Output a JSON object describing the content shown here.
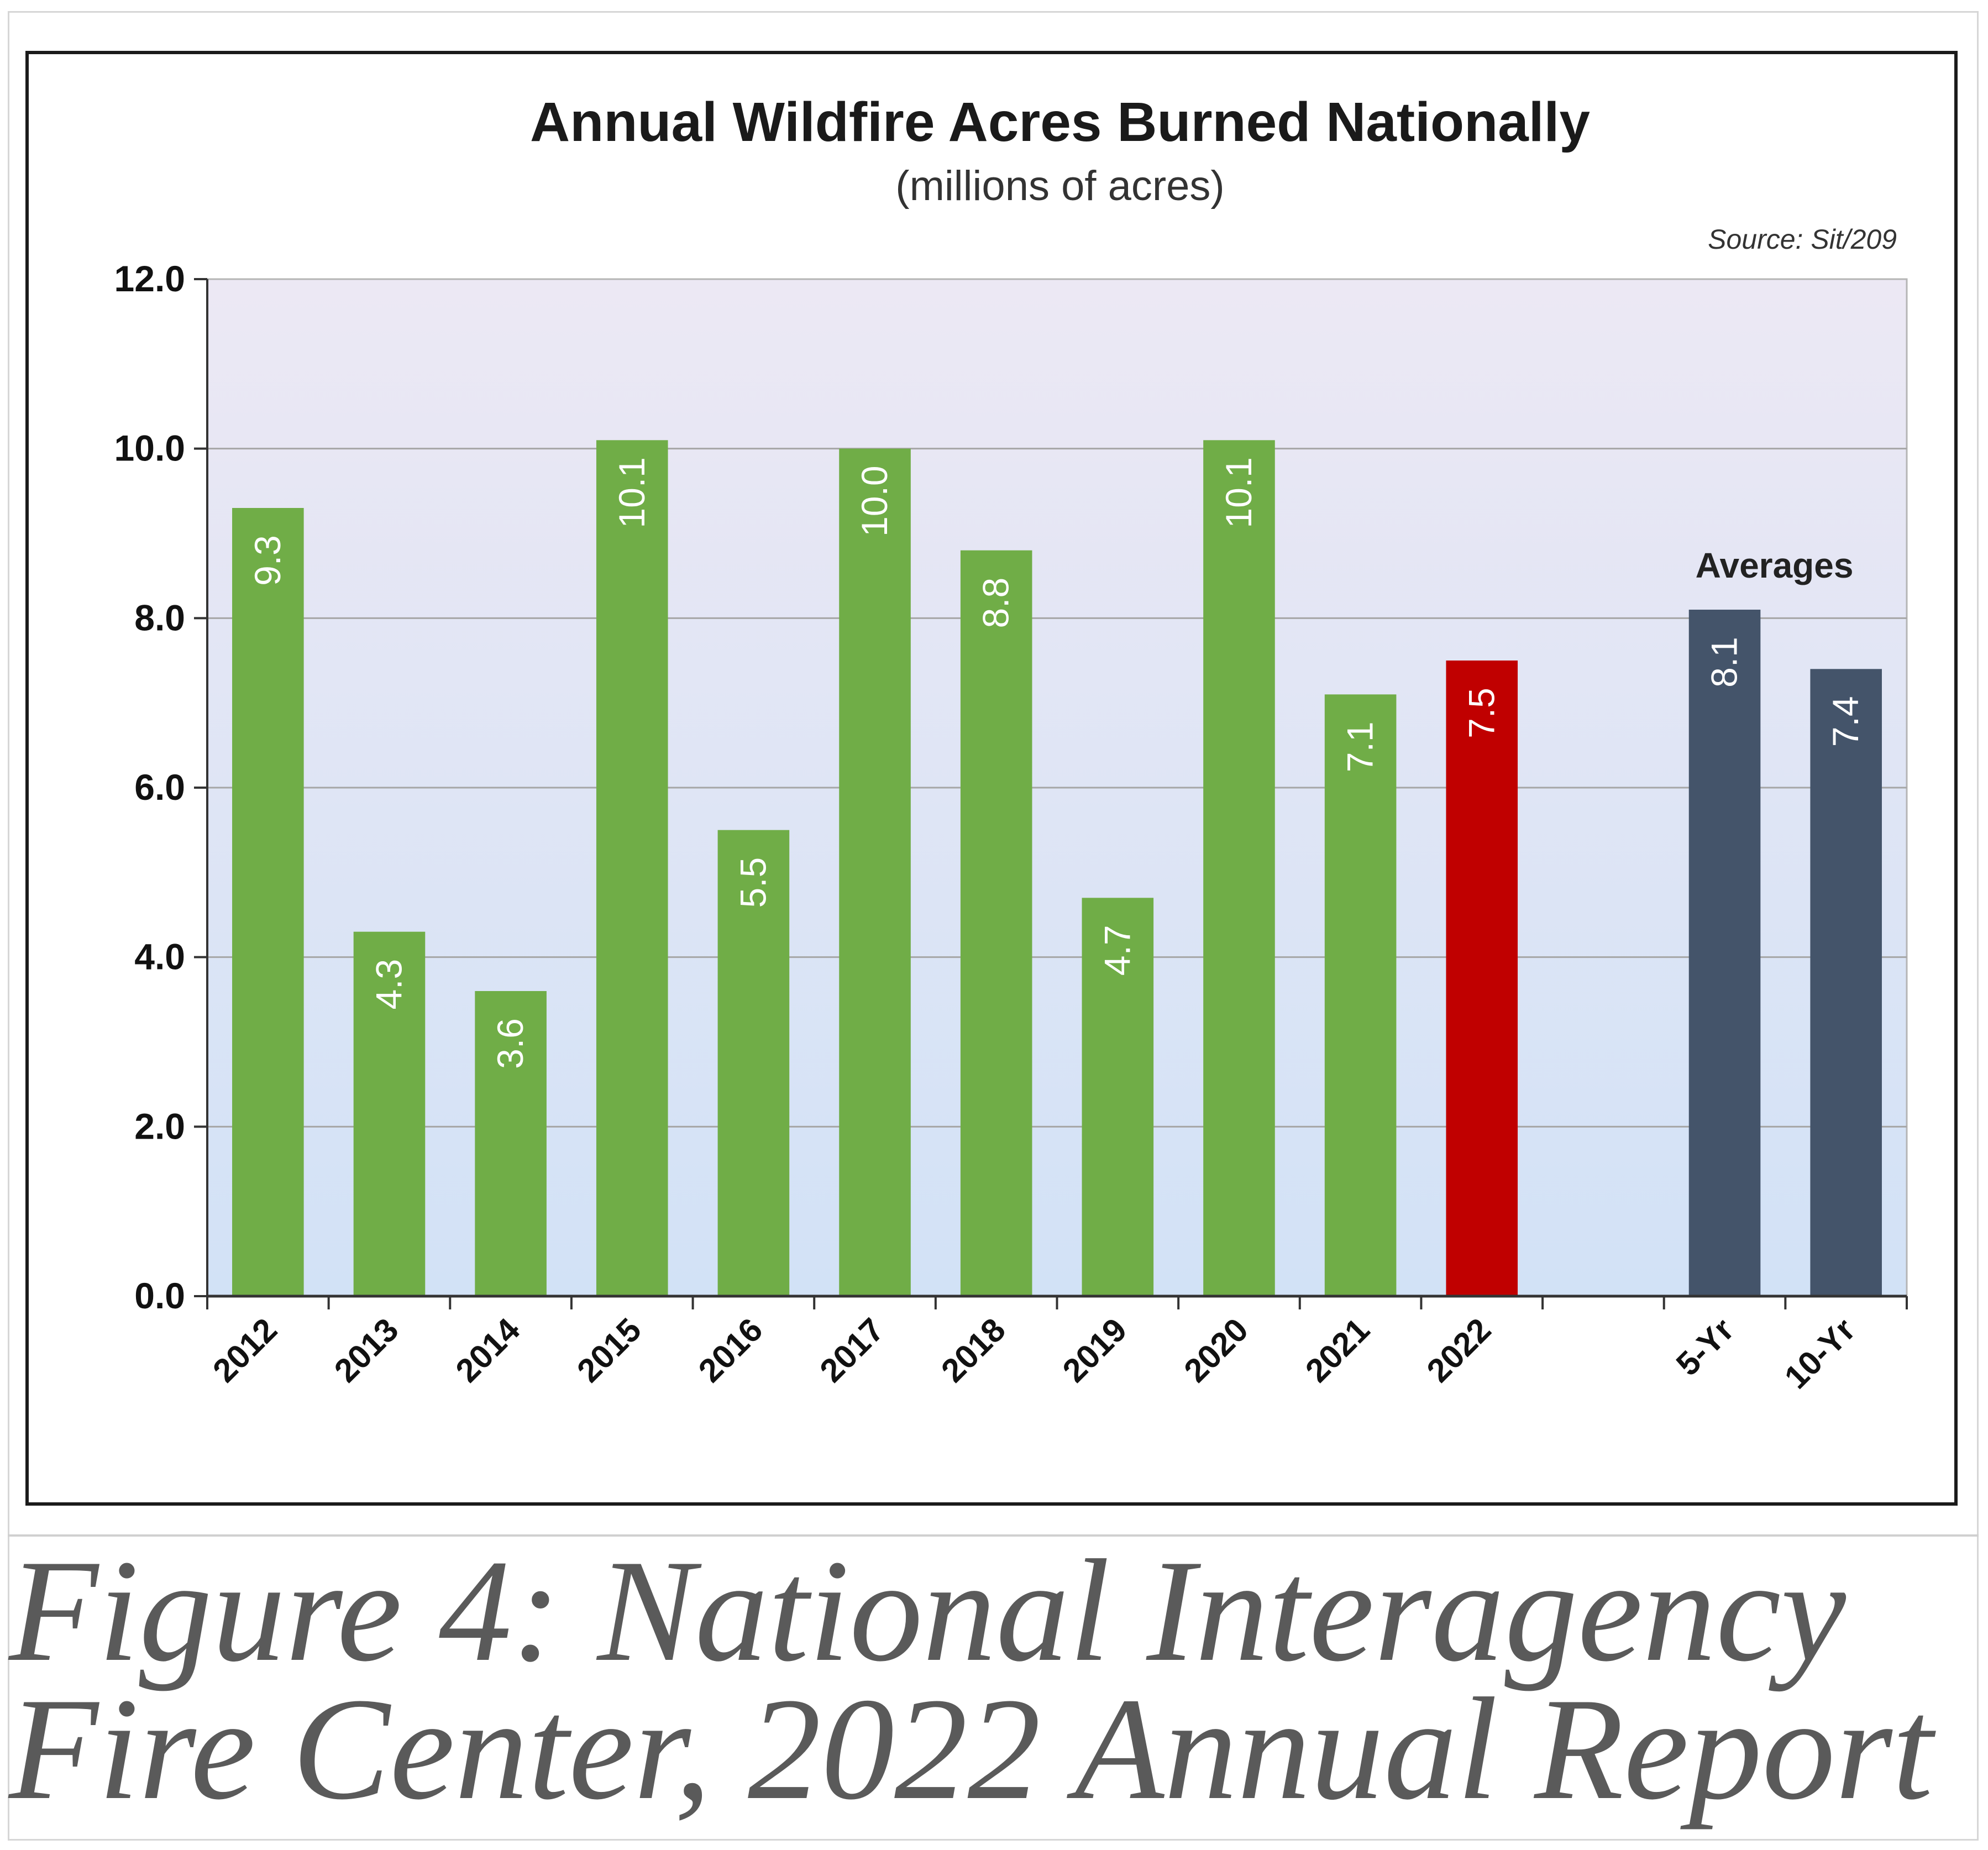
{
  "figure": {
    "caption": "Figure 4: National Interagency Fire Center, 2022 Annual Report"
  },
  "chart_data": {
    "type": "bar",
    "title": "Annual Wildfire Acres Burned Nationally",
    "subtitle": "(millions of acres)",
    "source": "Source: Sit/209",
    "group_label": "Averages",
    "xlabel": "",
    "ylabel": "",
    "ylim": [
      0,
      12
    ],
    "yticks": [
      "0.0",
      "2.0",
      "4.0",
      "6.0",
      "8.0",
      "10.0",
      "12.0"
    ],
    "grid": true,
    "categories": [
      "2012",
      "2013",
      "2014",
      "2015",
      "2016",
      "2017",
      "2018",
      "2019",
      "2020",
      "2021",
      "2022",
      "",
      "5-Yr",
      "10-Yr"
    ],
    "values": [
      9.3,
      4.3,
      3.6,
      10.1,
      5.5,
      10.0,
      8.8,
      4.7,
      10.1,
      7.1,
      7.5,
      null,
      8.1,
      7.4
    ],
    "labels": [
      "9.3",
      "4.3",
      "3.6",
      "10.1",
      "5.5",
      "10.0",
      "8.8",
      "4.7",
      "10.1",
      "7.1",
      "7.5",
      "",
      "8.1",
      "7.4"
    ],
    "bar_colors": [
      "#70ad47",
      "#70ad47",
      "#70ad47",
      "#70ad47",
      "#70ad47",
      "#70ad47",
      "#70ad47",
      "#70ad47",
      "#70ad47",
      "#70ad47",
      "#c00000",
      "",
      "#44546a",
      "#44546a"
    ],
    "colors": {
      "annual": "#70ad47",
      "current_year": "#c00000",
      "average": "#44546a",
      "plot_bg_top": "#ece8f4",
      "plot_bg_bottom": "#d2e2f6"
    }
  }
}
